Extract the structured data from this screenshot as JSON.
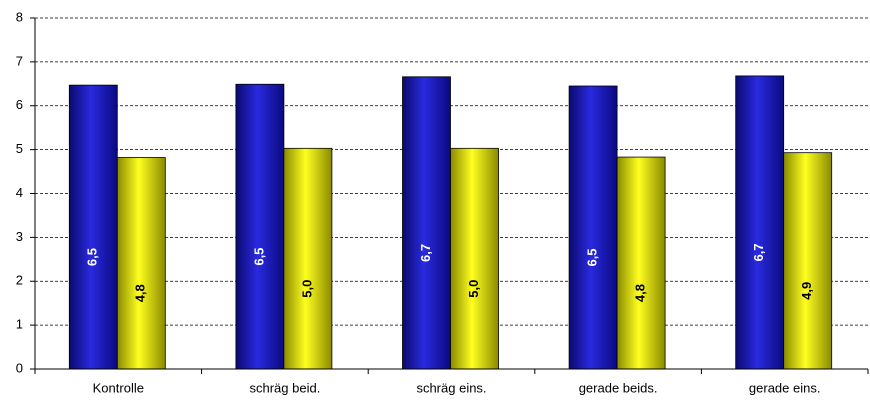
{
  "chart_data": {
    "type": "bar",
    "categories": [
      "Kontrolle",
      "schräg beid.",
      "schräg eins.",
      "gerade beids.",
      "gerade eins."
    ],
    "series": [
      {
        "color": "#1c1cb0",
        "values": [
          6.47,
          6.49,
          6.66,
          6.45,
          6.68
        ],
        "value_labels": [
          "6,5",
          "6,5",
          "6,7",
          "6,5",
          "6,7"
        ]
      },
      {
        "color": "#e6e600",
        "values": [
          4.82,
          5.03,
          5.03,
          4.83,
          4.93
        ],
        "value_labels": [
          "4,8",
          "5,0",
          "5,0",
          "4,8",
          "4,9"
        ]
      }
    ],
    "ylim": [
      0,
      8
    ],
    "yticks": [
      0,
      1,
      2,
      3,
      4,
      5,
      6,
      7,
      8
    ],
    "grid": true
  }
}
